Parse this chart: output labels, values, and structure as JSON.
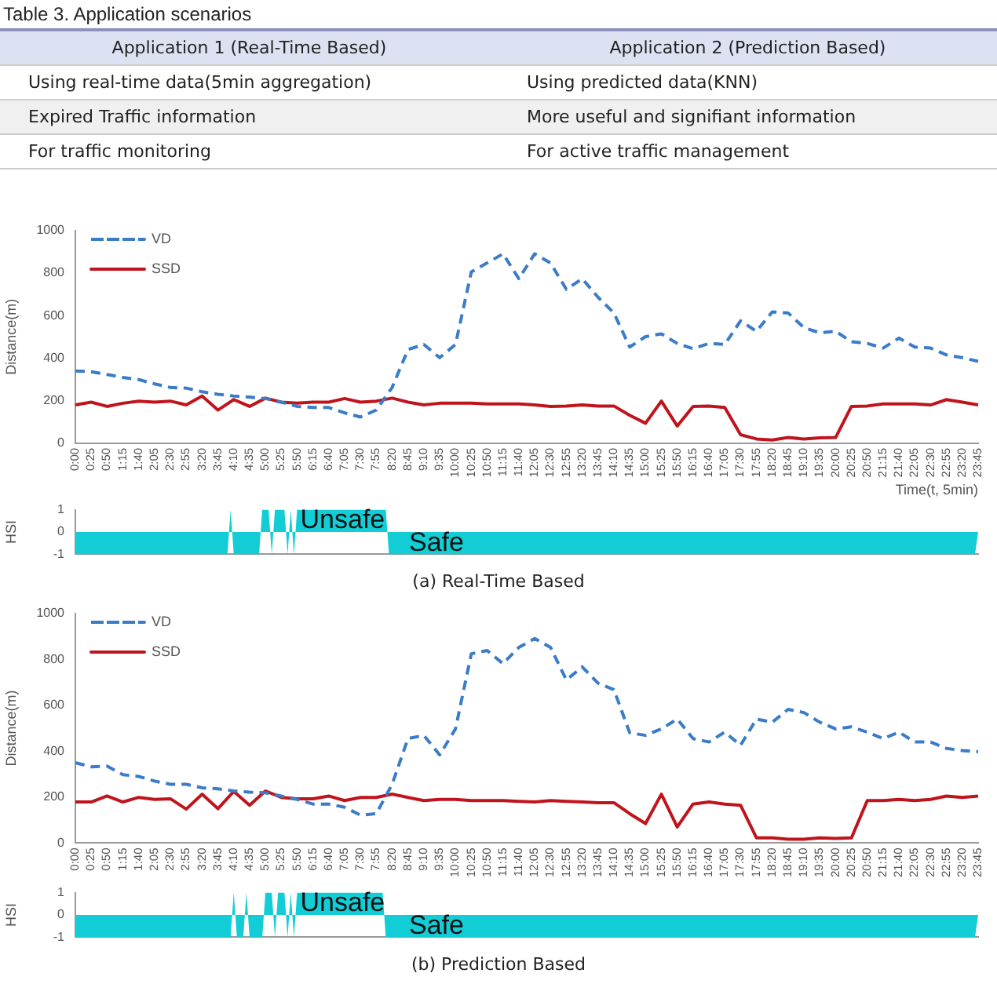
{
  "chart_data": [
    {
      "type": "other",
      "title": "Table 3. Application scenarios",
      "annotations": [
        "Application 1 (Real-Time Based)",
        "Application 2 (Prediction Based)",
        "Using real-time data(5min aggregation)",
        "Using predicted data(KNN)",
        "Expired Traffic information",
        "More useful and signifiant information",
        "For traffic monitoring",
        "For active traffic management"
      ]
    },
    {
      "type": "line",
      "ylabel": "Distance(m)",
      "xlabel": "Time(t, 5min)",
      "legend": "top left",
      "marker": "none",
      "grid": false,
      "categories": [
        "0:00",
        "0:25",
        "0:50",
        "1:15",
        "1:40",
        "2:05",
        "2:30",
        "2:55",
        "3:20",
        "3:45",
        "4:10",
        "4:35",
        "5:00",
        "5:25",
        "5:50",
        "6:15",
        "6:40",
        "7:05",
        "7:30",
        "7:55",
        "8:20",
        "8:45",
        "9:10",
        "9:35",
        "10:00",
        "10:25",
        "10:50",
        "11:15",
        "11:40",
        "12:05",
        "12:30",
        "12:55",
        "13:20",
        "13:45",
        "14:10",
        "14:35",
        "15:00",
        "15:25",
        "15:50",
        "16:15",
        "16:40",
        "17:05",
        "17:30",
        "17:55",
        "18:20",
        "18:45",
        "19:10",
        "19:35",
        "20:00",
        "20:25",
        "20:50",
        "21:15",
        "21:40",
        "22:05",
        "22:30",
        "22:55",
        "23:20",
        "23:45"
      ],
      "ylim": [
        0,
        1000
      ],
      "yticks": [
        0,
        200,
        400,
        600,
        800,
        1000
      ],
      "series": [
        {
          "name": "VD",
          "color": "#3a7cc8",
          "line_style": "dashed",
          "values": [
            340,
            336,
            323,
            309,
            299,
            279,
            262,
            259,
            242,
            230,
            222,
            217,
            210,
            193,
            173,
            168,
            168,
            143,
            123,
            156,
            262,
            440,
            464,
            402,
            464,
            805,
            847,
            890,
            773,
            890,
            847,
            723,
            773,
            686,
            612,
            452,
            501,
            514,
            469,
            444,
            469,
            464,
            575,
            526,
            617,
            612,
            543,
            519,
            526,
            477,
            469,
            447,
            494,
            452,
            447,
            415,
            402,
            385
          ]
        },
        {
          "name": "SSD",
          "color": "#c0141c",
          "line_style": "solid",
          "values": [
            180,
            193,
            173,
            188,
            198,
            193,
            198,
            180,
            222,
            156,
            205,
            173,
            212,
            193,
            188,
            193,
            193,
            210,
            193,
            198,
            212,
            193,
            180,
            188,
            188,
            188,
            185,
            185,
            185,
            180,
            173,
            175,
            180,
            175,
            175,
            131,
            94,
            198,
            81,
            173,
            175,
            168,
            40,
            20,
            15,
            27,
            20,
            25,
            27,
            173,
            175,
            185,
            185,
            185,
            180,
            205,
            193,
            180
          ]
        }
      ]
    },
    {
      "type": "area",
      "ylabel": "HSI",
      "tick_labels": "y",
      "grid": false,
      "marker": "none",
      "ylim": [
        -1,
        1
      ],
      "yticks": [
        -1,
        0,
        1
      ],
      "categories": [
        null,
        null,
        null,
        null,
        null,
        null,
        null,
        null,
        null,
        null,
        null,
        null,
        null,
        null,
        null,
        null,
        null,
        null,
        null,
        null,
        null,
        null,
        null,
        null,
        null,
        null,
        null,
        null,
        null,
        null,
        null,
        null,
        null,
        null,
        null,
        null,
        null,
        null,
        null,
        null,
        null,
        null,
        null,
        null,
        null,
        null,
        null,
        null,
        null,
        null,
        null,
        null,
        null,
        null,
        null,
        null,
        null,
        null,
        null,
        null,
        null,
        null,
        null,
        null,
        null,
        null,
        null,
        null,
        null,
        null,
        null,
        null,
        null,
        null,
        null,
        null,
        null,
        null,
        null,
        null,
        null,
        null,
        null,
        null,
        null,
        null,
        null,
        null,
        null,
        null,
        null,
        null,
        null,
        null,
        null,
        null,
        null,
        null,
        null,
        null,
        null,
        null,
        null,
        null,
        null,
        null,
        null,
        null,
        null,
        null,
        null,
        null,
        null,
        null,
        null,
        null,
        null,
        null,
        null,
        null,
        null,
        null,
        null,
        null,
        null,
        null,
        null,
        null,
        null,
        null,
        null,
        null,
        null,
        null,
        null,
        null,
        null,
        null,
        null,
        null,
        null,
        null,
        null,
        null,
        null,
        null,
        null,
        null,
        null,
        null,
        null,
        null,
        null,
        null,
        null,
        null,
        null,
        null,
        null,
        null,
        null,
        null,
        null,
        null,
        null,
        null,
        null,
        null,
        null,
        null,
        null,
        null,
        null,
        null,
        null,
        null,
        null,
        null,
        null,
        null,
        null,
        null,
        null,
        null,
        null,
        null,
        null,
        null,
        null,
        null,
        null,
        null,
        null,
        null,
        null,
        null,
        null,
        null,
        null,
        null,
        null,
        null,
        null,
        null,
        null,
        null,
        null,
        null,
        null,
        null,
        null,
        null,
        null,
        null,
        null,
        null,
        null,
        null,
        null,
        null,
        null,
        null,
        null,
        null,
        null,
        null,
        null,
        null,
        null,
        null,
        null,
        null,
        null,
        null,
        null,
        null,
        null,
        null,
        null,
        null,
        null,
        null,
        null,
        null,
        null,
        null,
        null,
        null,
        null,
        null,
        null,
        null,
        null,
        null,
        null,
        null,
        null,
        null,
        null,
        null,
        null,
        null,
        null,
        null,
        null,
        null,
        null,
        null,
        null,
        null,
        null,
        null,
        null,
        null,
        null,
        null,
        null,
        null,
        null,
        null,
        null,
        null,
        null,
        null,
        null,
        null
      ],
      "series": [
        {
          "color": "#12cdd6",
          "values": [
            -1,
            -1,
            -1,
            -1,
            -1,
            -1,
            -1,
            -1,
            -1,
            -1,
            -1,
            -1,
            -1,
            -1,
            -1,
            -1,
            -1,
            -1,
            -1,
            -1,
            -1,
            -1,
            -1,
            -1,
            -1,
            -1,
            -1,
            -1,
            -1,
            -1,
            -1,
            -1,
            -1,
            -1,
            -1,
            -1,
            -1,
            -1,
            -1,
            -1,
            -1,
            -1,
            -1,
            -1,
            -1,
            -1,
            -1,
            -1,
            -1,
            1,
            -1,
            -1,
            -1,
            -1,
            -1,
            -1,
            -1,
            -1,
            -1,
            1,
            1,
            1,
            -1,
            1,
            1,
            1,
            1,
            -1,
            1,
            -1,
            1,
            1,
            1,
            1,
            1,
            1,
            1,
            1,
            1,
            1,
            1,
            1,
            1,
            1,
            1,
            1,
            1,
            1,
            1,
            1,
            1,
            1,
            1,
            1,
            1,
            1,
            1,
            1,
            1,
            -1,
            -1,
            -1,
            -1,
            -1,
            -1,
            -1,
            -1,
            -1,
            -1,
            -1,
            -1,
            -1,
            -1,
            -1,
            -1,
            -1,
            -1,
            -1,
            -1,
            -1,
            -1,
            -1,
            -1,
            -1,
            -1,
            -1,
            -1,
            -1,
            -1,
            -1,
            -1,
            -1,
            -1,
            -1,
            -1,
            -1,
            -1,
            -1,
            -1,
            -1,
            -1,
            -1,
            -1,
            -1,
            -1,
            -1,
            -1,
            -1,
            -1,
            -1,
            -1,
            -1,
            -1,
            -1,
            -1,
            -1,
            -1,
            -1,
            -1,
            -1,
            -1,
            -1,
            -1,
            -1,
            -1,
            -1,
            -1,
            -1,
            -1,
            -1,
            -1,
            -1,
            -1,
            -1,
            -1,
            -1,
            -1,
            -1,
            -1,
            -1,
            -1,
            -1,
            -1,
            -1,
            -1,
            -1,
            -1,
            -1,
            -1,
            -1,
            -1,
            -1,
            -1,
            -1,
            -1,
            -1,
            -1,
            -1,
            -1,
            -1,
            -1,
            -1,
            -1,
            -1,
            -1,
            -1,
            -1,
            -1,
            -1,
            -1,
            -1,
            -1,
            -1,
            -1,
            -1,
            -1,
            -1,
            -1,
            -1,
            -1,
            -1,
            -1,
            -1,
            -1,
            -1,
            -1,
            -1,
            -1,
            -1,
            -1,
            -1,
            -1,
            -1,
            -1,
            -1,
            -1,
            -1,
            -1,
            -1,
            -1,
            -1,
            -1,
            -1,
            -1,
            -1,
            -1,
            -1,
            -1,
            -1,
            -1,
            -1,
            -1,
            -1,
            -1,
            -1,
            -1,
            -1,
            -1,
            -1,
            -1,
            -1,
            -1,
            -1,
            -1,
            -1,
            -1,
            -1,
            -1,
            -1,
            -1,
            -1,
            -1,
            -1,
            -1,
            -1,
            -1,
            -1,
            -1,
            -1,
            -1,
            -1,
            -1,
            -1,
            -1,
            -1,
            0
          ]
        }
      ],
      "annotations": [
        "Unsafe",
        "Safe",
        "(a)  Real-Time Based"
      ]
    },
    {
      "type": "line",
      "ylabel": "Distance(m)",
      "legend": "top left",
      "marker": "none",
      "grid": false,
      "categories": [
        "0:00",
        "0:25",
        "0:50",
        "1:15",
        "1:40",
        "2:05",
        "2:30",
        "2:55",
        "3:20",
        "3:45",
        "4:10",
        "4:35",
        "5:00",
        "5:25",
        "5:50",
        "6:15",
        "6:40",
        "7:05",
        "7:30",
        "7:55",
        "8:20",
        "8:45",
        "9:10",
        "9:35",
        "10:00",
        "10:25",
        "10:50",
        "11:15",
        "11:40",
        "12:05",
        "12:30",
        "12:55",
        "13:20",
        "13:45",
        "14:10",
        "14:35",
        "15:00",
        "15:25",
        "15:50",
        "16:15",
        "16:40",
        "17:05",
        "17:30",
        "17:55",
        "18:20",
        "18:45",
        "19:10",
        "19:35",
        "20:00",
        "20:25",
        "20:50",
        "21:15",
        "21:40",
        "22:05",
        "22:30",
        "22:55",
        "23:20",
        "23:45"
      ],
      "ylim": [
        0,
        1000
      ],
      "yticks": [
        0,
        200,
        400,
        600,
        800,
        1000
      ],
      "series": [
        {
          "name": "VD",
          "color": "#3a7cc8",
          "line_style": "dashed",
          "values": [
            350,
            332,
            335,
            298,
            290,
            270,
            256,
            256,
            241,
            236,
            227,
            222,
            219,
            205,
            190,
            170,
            170,
            156,
            122,
            128,
            256,
            455,
            469,
            384,
            497,
            824,
            838,
            781,
            852,
            890,
            852,
            710,
            767,
            696,
            668,
            480,
            469,
            497,
            540,
            455,
            440,
            483,
            426,
            540,
            526,
            582,
            568,
            526,
            497,
            506,
            483,
            455,
            483,
            440,
            440,
            412,
            403,
            398
          ]
        },
        {
          "name": "SSD",
          "color": "#c0141c",
          "line_style": "solid",
          "values": [
            179,
            179,
            205,
            179,
            199,
            190,
            193,
            148,
            213,
            150,
            225,
            165,
            227,
            199,
            193,
            193,
            205,
            185,
            199,
            199,
            213,
            199,
            185,
            190,
            190,
            185,
            185,
            185,
            182,
            179,
            185,
            182,
            179,
            176,
            176,
            128,
            85,
            213,
            70,
            170,
            179,
            170,
            165,
            23,
            23,
            17,
            17,
            23,
            20,
            23,
            185,
            185,
            190,
            185,
            190,
            205,
            199,
            205
          ]
        }
      ]
    },
    {
      "type": "area",
      "ylabel": "HSI",
      "tick_labels": "y",
      "grid": false,
      "marker": "none",
      "ylim": [
        -1,
        1
      ],
      "yticks": [
        -1,
        0,
        1
      ],
      "categories": [
        null,
        null,
        null,
        null,
        null,
        null,
        null,
        null,
        null,
        null,
        null,
        null,
        null,
        null,
        null,
        null,
        null,
        null,
        null,
        null,
        null,
        null,
        null,
        null,
        null,
        null,
        null,
        null,
        null,
        null,
        null,
        null,
        null,
        null,
        null,
        null,
        null,
        null,
        null,
        null,
        null,
        null,
        null,
        null,
        null,
        null,
        null,
        null,
        null,
        null,
        null,
        null,
        null,
        null,
        null,
        null,
        null,
        null,
        null,
        null,
        null,
        null,
        null,
        null,
        null,
        null,
        null,
        null,
        null,
        null,
        null,
        null,
        null,
        null,
        null,
        null,
        null,
        null,
        null,
        null,
        null,
        null,
        null,
        null,
        null,
        null,
        null,
        null,
        null,
        null,
        null,
        null,
        null,
        null,
        null,
        null,
        null,
        null,
        null,
        null,
        null,
        null,
        null,
        null,
        null,
        null,
        null,
        null,
        null,
        null,
        null,
        null,
        null,
        null,
        null,
        null,
        null,
        null,
        null,
        null,
        null,
        null,
        null,
        null,
        null,
        null,
        null,
        null,
        null,
        null,
        null,
        null,
        null,
        null,
        null,
        null,
        null,
        null,
        null,
        null,
        null,
        null,
        null,
        null,
        null,
        null,
        null,
        null,
        null,
        null,
        null,
        null,
        null,
        null,
        null,
        null,
        null,
        null,
        null,
        null,
        null,
        null,
        null,
        null,
        null,
        null,
        null,
        null,
        null,
        null,
        null,
        null,
        null,
        null,
        null,
        null,
        null,
        null,
        null,
        null,
        null,
        null,
        null,
        null,
        null,
        null,
        null,
        null,
        null,
        null,
        null,
        null,
        null,
        null,
        null,
        null,
        null,
        null,
        null,
        null,
        null,
        null,
        null,
        null,
        null,
        null,
        null,
        null,
        null,
        null,
        null,
        null,
        null,
        null,
        null,
        null,
        null,
        null,
        null,
        null,
        null,
        null,
        null,
        null,
        null,
        null,
        null,
        null,
        null,
        null,
        null,
        null,
        null,
        null,
        null,
        null,
        null,
        null,
        null,
        null,
        null,
        null,
        null,
        null,
        null,
        null,
        null,
        null,
        null,
        null,
        null,
        null,
        null,
        null,
        null,
        null,
        null,
        null,
        null,
        null,
        null,
        null,
        null,
        null,
        null,
        null,
        null,
        null,
        null,
        null,
        null,
        null,
        null,
        null,
        null,
        null,
        null,
        null,
        null,
        null,
        null,
        null,
        null,
        null,
        null,
        null
      ],
      "series": [
        {
          "color": "#12cdd6",
          "values": [
            -1,
            -1,
            -1,
            -1,
            -1,
            -1,
            -1,
            -1,
            -1,
            -1,
            -1,
            -1,
            -1,
            -1,
            -1,
            -1,
            -1,
            -1,
            -1,
            -1,
            -1,
            -1,
            -1,
            -1,
            -1,
            -1,
            -1,
            -1,
            -1,
            -1,
            -1,
            -1,
            -1,
            -1,
            -1,
            -1,
            -1,
            -1,
            -1,
            -1,
            -1,
            -1,
            -1,
            -1,
            -1,
            -1,
            -1,
            -1,
            -1,
            -1,
            1,
            -1,
            -1,
            -1,
            1,
            -1,
            -1,
            -1,
            -1,
            -1,
            1,
            1,
            1,
            -1,
            1,
            1,
            1,
            -1,
            1,
            -1,
            1,
            1,
            1,
            1,
            1,
            1,
            1,
            1,
            1,
            1,
            1,
            1,
            1,
            1,
            1,
            1,
            1,
            1,
            1,
            1,
            1,
            1,
            1,
            1,
            1,
            1,
            1,
            1,
            -1,
            -1,
            -1,
            -1,
            -1,
            -1,
            -1,
            -1,
            -1,
            -1,
            -1,
            -1,
            -1,
            -1,
            -1,
            -1,
            -1,
            -1,
            -1,
            -1,
            -1,
            -1,
            -1,
            -1,
            -1,
            -1,
            -1,
            -1,
            -1,
            -1,
            -1,
            -1,
            -1,
            -1,
            -1,
            -1,
            -1,
            -1,
            -1,
            -1,
            -1,
            -1,
            -1,
            -1,
            -1,
            -1,
            -1,
            -1,
            -1,
            -1,
            -1,
            -1,
            -1,
            -1,
            -1,
            -1,
            -1,
            -1,
            -1,
            -1,
            -1,
            -1,
            -1,
            -1,
            -1,
            -1,
            -1,
            -1,
            -1,
            -1,
            -1,
            -1,
            -1,
            -1,
            -1,
            -1,
            -1,
            -1,
            -1,
            -1,
            -1,
            -1,
            -1,
            -1,
            -1,
            -1,
            -1,
            -1,
            -1,
            -1,
            -1,
            -1,
            -1,
            -1,
            -1,
            -1,
            -1,
            -1,
            -1,
            -1,
            -1,
            -1,
            -1,
            -1,
            -1,
            -1,
            -1,
            -1,
            -1,
            -1,
            -1,
            -1,
            -1,
            -1,
            -1,
            -1,
            -1,
            -1,
            -1,
            -1,
            -1,
            -1,
            -1,
            -1,
            -1,
            -1,
            -1,
            -1,
            -1,
            -1,
            -1,
            -1,
            -1,
            -1,
            -1,
            -1,
            -1,
            -1,
            -1,
            -1,
            -1,
            -1,
            -1,
            -1,
            -1,
            -1,
            -1,
            -1,
            -1,
            -1,
            -1,
            -1,
            -1,
            -1,
            -1,
            -1,
            -1,
            -1,
            -1,
            -1,
            -1,
            -1,
            -1,
            -1,
            -1,
            -1,
            -1,
            -1,
            -1,
            -1,
            -1,
            -1,
            -1,
            -1,
            -1,
            -1,
            -1,
            -1,
            -1,
            -1,
            -1,
            -1,
            -1,
            -1,
            -1,
            -1,
            -1,
            0
          ]
        }
      ],
      "annotations": [
        "Unsafe",
        "Safe",
        "(b)  Prediction Based"
      ]
    }
  ]
}
